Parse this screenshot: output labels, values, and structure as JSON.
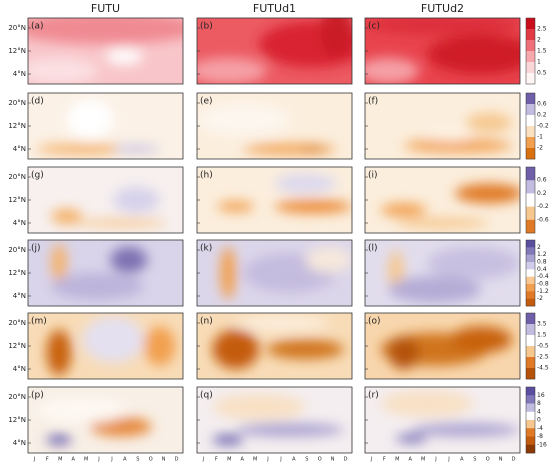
{
  "columns": [
    "FUTU",
    "FUTUd1",
    "FUTUd2"
  ],
  "y_ticks": [
    "20°N",
    "12°N",
    "4°N"
  ],
  "months": [
    "J",
    "F",
    "M",
    "A",
    "M",
    "J",
    "J",
    "A",
    "S",
    "O",
    "N",
    "D"
  ],
  "rows": [
    {
      "panels": [
        "(a)",
        "(b)",
        "(c)"
      ],
      "colorbar": [
        "2.5",
        "2",
        "1.5",
        "1",
        "0.5"
      ]
    },
    {
      "panels": [
        "(d)",
        "(e)",
        "(f)"
      ],
      "colorbar": [
        "0.6",
        "0.2",
        "-0.2",
        "-1",
        "-2"
      ]
    },
    {
      "panels": [
        "(g)",
        "(h)",
        "(i)"
      ],
      "colorbar": [
        "0.6",
        "0.2",
        "-0.2",
        "-0.6"
      ]
    },
    {
      "panels": [
        "(j)",
        "(k)",
        "(l)"
      ],
      "colorbar": [
        "2",
        "1.2",
        "0.8",
        "0.4",
        "-0.4",
        "-0.8",
        "-1.2",
        "-2"
      ]
    },
    {
      "panels": [
        "(m)",
        "(n)",
        "(o)"
      ],
      "colorbar": [
        "3.5",
        "1.5",
        "-0.5",
        "-2.5",
        "-4.5"
      ]
    },
    {
      "panels": [
        "(p)",
        "(q)",
        "(r)"
      ],
      "colorbar": [
        "16",
        "8",
        "4",
        "0",
        "-4",
        "-8",
        "-16"
      ]
    }
  ]
}
